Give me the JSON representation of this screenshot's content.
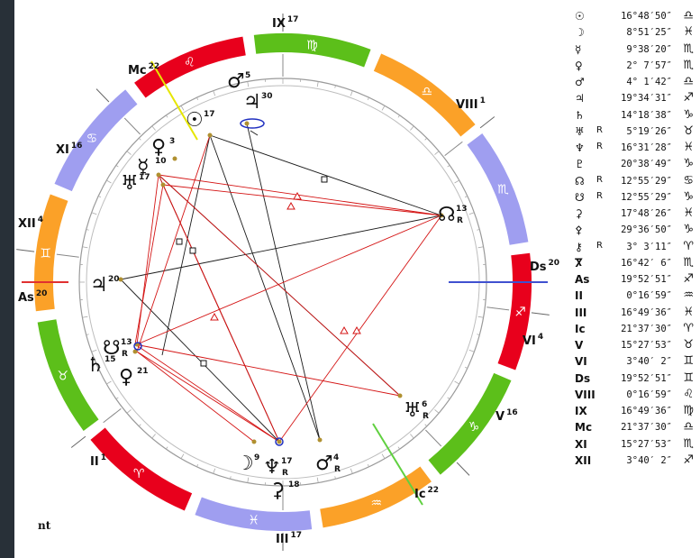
{
  "footnote": "nt",
  "colors": {
    "fire": "#e8001c",
    "earth": "#5cbf1a",
    "air": "#fba128",
    "water": "#9f9ef0",
    "aspect_hard": "#d41414",
    "aspect_soft": "#1a1a1a",
    "axis_asc": "#e03030",
    "axis_dsc": "#4050d0",
    "axis_mc": "#e6e600",
    "axis_ic": "#60d040"
  },
  "signs": [
    {
      "glyph": "♍"
    },
    {
      "glyph": "♌"
    },
    {
      "glyph": "♋"
    },
    {
      "glyph": "♊"
    },
    {
      "glyph": "♉"
    },
    {
      "glyph": "♈"
    },
    {
      "glyph": "♓"
    },
    {
      "glyph": "♒"
    },
    {
      "glyph": "♑"
    },
    {
      "glyph": "♐"
    },
    {
      "glyph": "♏"
    },
    {
      "glyph": "♎"
    }
  ],
  "houses": [
    {
      "label": "IX",
      "deg": "17"
    },
    {
      "label": "VIII",
      "deg": "1"
    },
    {
      "label": "Ds",
      "deg": "20"
    },
    {
      "label": "VI",
      "deg": "4"
    },
    {
      "label": "V",
      "deg": "16"
    },
    {
      "label": "Ic",
      "deg": "22"
    },
    {
      "label": "III",
      "deg": "17"
    },
    {
      "label": "II",
      "deg": "1"
    },
    {
      "label": "As",
      "deg": "20"
    },
    {
      "label": "XII",
      "deg": "4"
    },
    {
      "label": "XI",
      "deg": "16"
    },
    {
      "label": "Mc",
      "deg": "22"
    }
  ],
  "planets": [
    {
      "glyph": "☉",
      "deg": "17",
      "r": ""
    },
    {
      "glyph": "♂",
      "deg": "5",
      "r": ""
    },
    {
      "glyph": "♃",
      "deg": "30",
      "r": ""
    },
    {
      "glyph": "♀",
      "deg": "3",
      "r": ""
    },
    {
      "glyph": "☿",
      "deg": "10",
      "r": ""
    },
    {
      "glyph": "♅",
      "deg": "17",
      "r": ""
    },
    {
      "glyph": "☊",
      "deg": "13",
      "r": "R"
    },
    {
      "glyph": "♃",
      "deg": "20",
      "r": ""
    },
    {
      "glyph": "☋",
      "deg": "13",
      "r": "R"
    },
    {
      "glyph": "♄",
      "deg": "15",
      "r": ""
    },
    {
      "glyph": "♀",
      "deg": "21",
      "r": ""
    },
    {
      "glyph": "☽",
      "deg": "9",
      "r": ""
    },
    {
      "glyph": "♆",
      "deg": "17",
      "r": "R"
    },
    {
      "glyph": "⚳",
      "deg": "18",
      "r": ""
    },
    {
      "glyph": "♂",
      "deg": "4",
      "r": "R"
    },
    {
      "glyph": "♅",
      "deg": "6",
      "r": "R"
    }
  ],
  "positions": [
    {
      "symbol": "☉",
      "retro": "",
      "pos": "16°48′50″",
      "sign": "♎"
    },
    {
      "symbol": "☽",
      "retro": "",
      "pos": "8°51′25″",
      "sign": "♓"
    },
    {
      "symbol": "☿",
      "retro": "",
      "pos": "9°38′20″",
      "sign": "♏"
    },
    {
      "symbol": "♀",
      "retro": "",
      "pos": "2° 7′57″",
      "sign": "♏"
    },
    {
      "symbol": "♂",
      "retro": "",
      "pos": "4° 1′42″",
      "sign": "♎"
    },
    {
      "symbol": "♃",
      "retro": "",
      "pos": "19°34′31″",
      "sign": "♐"
    },
    {
      "symbol": "♄",
      "retro": "",
      "pos": "14°18′38″",
      "sign": "♑"
    },
    {
      "symbol": "♅",
      "retro": "R",
      "pos": "5°19′26″",
      "sign": "♉"
    },
    {
      "symbol": "♆",
      "retro": "R",
      "pos": "16°31′28″",
      "sign": "♓"
    },
    {
      "symbol": "♇",
      "retro": "",
      "pos": "20°38′49″",
      "sign": "♑"
    },
    {
      "symbol": "☊",
      "retro": "R",
      "pos": "12°55′29″",
      "sign": "♋"
    },
    {
      "symbol": "☋",
      "retro": "R",
      "pos": "12°55′29″",
      "sign": "♑"
    },
    {
      "symbol": "⚳",
      "retro": "",
      "pos": "17°48′26″",
      "sign": "♓"
    },
    {
      "symbol": "⚴",
      "retro": "",
      "pos": "29°36′50″",
      "sign": "♑"
    },
    {
      "symbol": "⚷",
      "retro": "R",
      "pos": "3° 3′11″",
      "sign": "♈"
    },
    {
      "symbol": "Ⴟ",
      "retro": "",
      "pos": "16°42′ 6″",
      "sign": "♏"
    },
    {
      "symbol": "As",
      "retro": "",
      "pos": "19°52′51″",
      "sign": "♐"
    },
    {
      "symbol": "II",
      "retro": "",
      "pos": "0°16′59″",
      "sign": "♒"
    },
    {
      "symbol": "III",
      "retro": "",
      "pos": "16°49′36″",
      "sign": "♓"
    },
    {
      "symbol": "Ic",
      "retro": "",
      "pos": "21°37′30″",
      "sign": "♈"
    },
    {
      "symbol": "V",
      "retro": "",
      "pos": "15°27′53″",
      "sign": "♉"
    },
    {
      "symbol": "VI",
      "retro": "",
      "pos": "3°40′ 2″",
      "sign": "♊"
    },
    {
      "symbol": "Ds",
      "retro": "",
      "pos": "19°52′51″",
      "sign": "♊"
    },
    {
      "symbol": "VIII",
      "retro": "",
      "pos": "0°16′59″",
      "sign": "♌"
    },
    {
      "symbol": "IX",
      "retro": "",
      "pos": "16°49′36″",
      "sign": "♍"
    },
    {
      "symbol": "Mc",
      "retro": "",
      "pos": "21°37′30″",
      "sign": "♎"
    },
    {
      "symbol": "XI",
      "retro": "",
      "pos": "15°27′53″",
      "sign": "♏"
    },
    {
      "symbol": "XII",
      "retro": "",
      "pos": "3°40′ 2″",
      "sign": "♐"
    }
  ]
}
